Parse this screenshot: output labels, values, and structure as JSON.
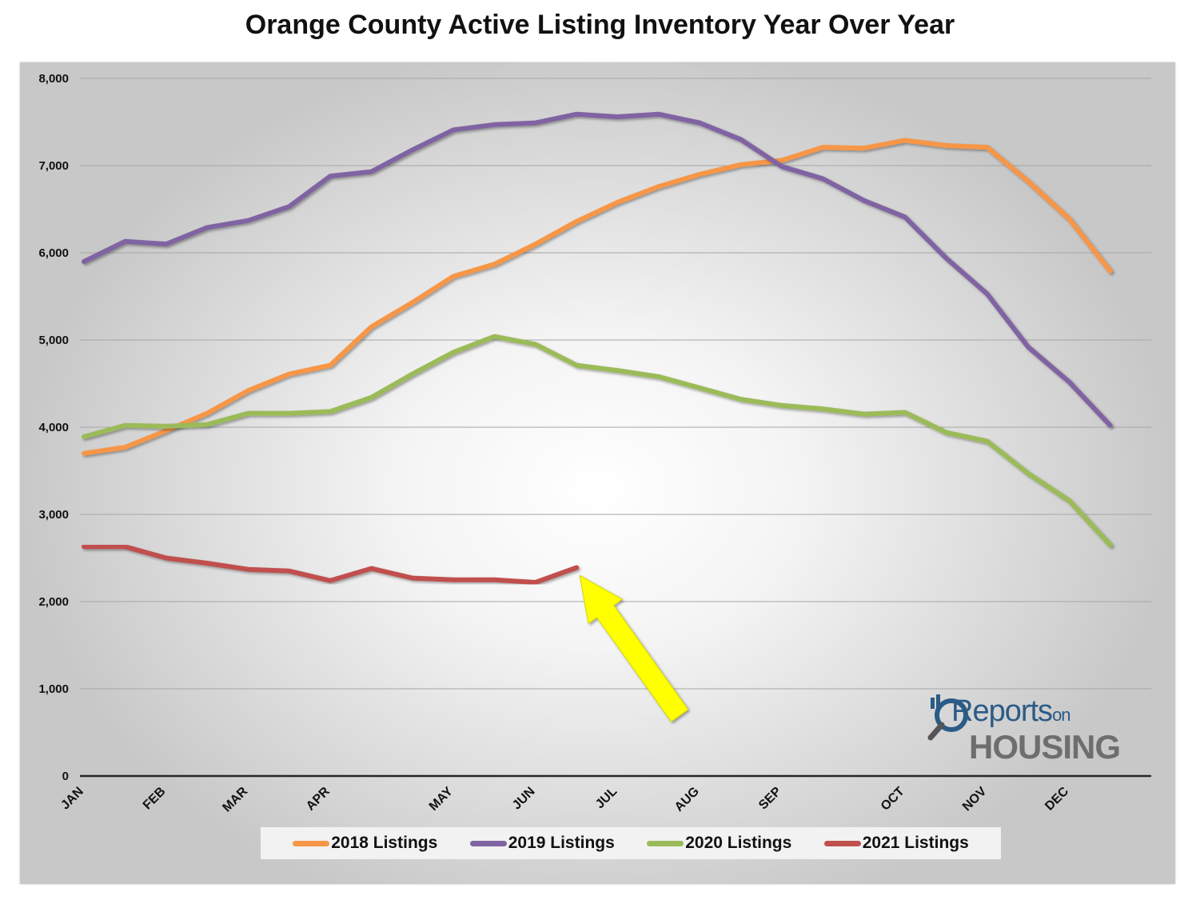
{
  "chart_data": {
    "type": "line",
    "title": "Orange County Active Listing Inventory Year Over Year",
    "xlabel": "",
    "ylabel": "",
    "ylim": [
      0,
      8000
    ],
    "yticks": [
      "0",
      "1,000",
      "2,000",
      "3,000",
      "4,000",
      "5,000",
      "6,000",
      "7,000",
      "8,000"
    ],
    "x_count": 27,
    "month_labels": [
      {
        "label": "JAN",
        "x": 0
      },
      {
        "label": "FEB",
        "x": 2
      },
      {
        "label": "MAR",
        "x": 4
      },
      {
        "label": "APR",
        "x": 6
      },
      {
        "label": "MAY",
        "x": 9
      },
      {
        "label": "JUN",
        "x": 11
      },
      {
        "label": "JUL",
        "x": 13
      },
      {
        "label": "AUG",
        "x": 15
      },
      {
        "label": "SEP",
        "x": 17
      },
      {
        "label": "OCT",
        "x": 20
      },
      {
        "label": "NOV",
        "x": 22
      },
      {
        "label": "DEC",
        "x": 24
      }
    ],
    "grid": true,
    "legend_position": "bottom",
    "series": [
      {
        "name": "2018 Listings",
        "color": "#f79646",
        "values": [
          3700,
          3770,
          3960,
          4160,
          4420,
          4610,
          4710,
          5150,
          5430,
          5730,
          5870,
          6100,
          6360,
          6580,
          6760,
          6900,
          7010,
          7060,
          7210,
          7200,
          7290,
          7230,
          7210,
          6820,
          6390,
          5790,
          null
        ]
      },
      {
        "name": "2019 Listings",
        "color": "#8064a2",
        "values": [
          5900,
          6130,
          6100,
          6290,
          6370,
          6530,
          6880,
          6930,
          7180,
          7410,
          7470,
          7490,
          7590,
          7560,
          7590,
          7490,
          7300,
          6990,
          6850,
          6600,
          6410,
          5940,
          5530,
          4920,
          4520,
          4020,
          null
        ]
      },
      {
        "name": "2020 Listings",
        "color": "#9bbb59",
        "values": [
          3890,
          4020,
          4010,
          4030,
          4160,
          4160,
          4180,
          4340,
          4610,
          4860,
          5040,
          4950,
          4710,
          4650,
          4580,
          4450,
          4320,
          4250,
          4210,
          4150,
          4170,
          3940,
          3840,
          3470,
          3160,
          2650,
          null
        ]
      },
      {
        "name": "2021 Listings",
        "color": "#c0504d",
        "values": [
          2630,
          2630,
          2500,
          2440,
          2370,
          2350,
          2240,
          2380,
          2270,
          2250,
          2250,
          2220,
          2390,
          null,
          null,
          null,
          null,
          null,
          null,
          null,
          null,
          null,
          null,
          null,
          null,
          null,
          null
        ]
      }
    ],
    "annotations": [
      {
        "type": "arrow",
        "color": "#ffff00",
        "points_to": {
          "x": 12,
          "y": 2390
        }
      }
    ]
  },
  "logo": {
    "top": "Reports",
    "on": "on",
    "bottom": "HOUSING"
  }
}
